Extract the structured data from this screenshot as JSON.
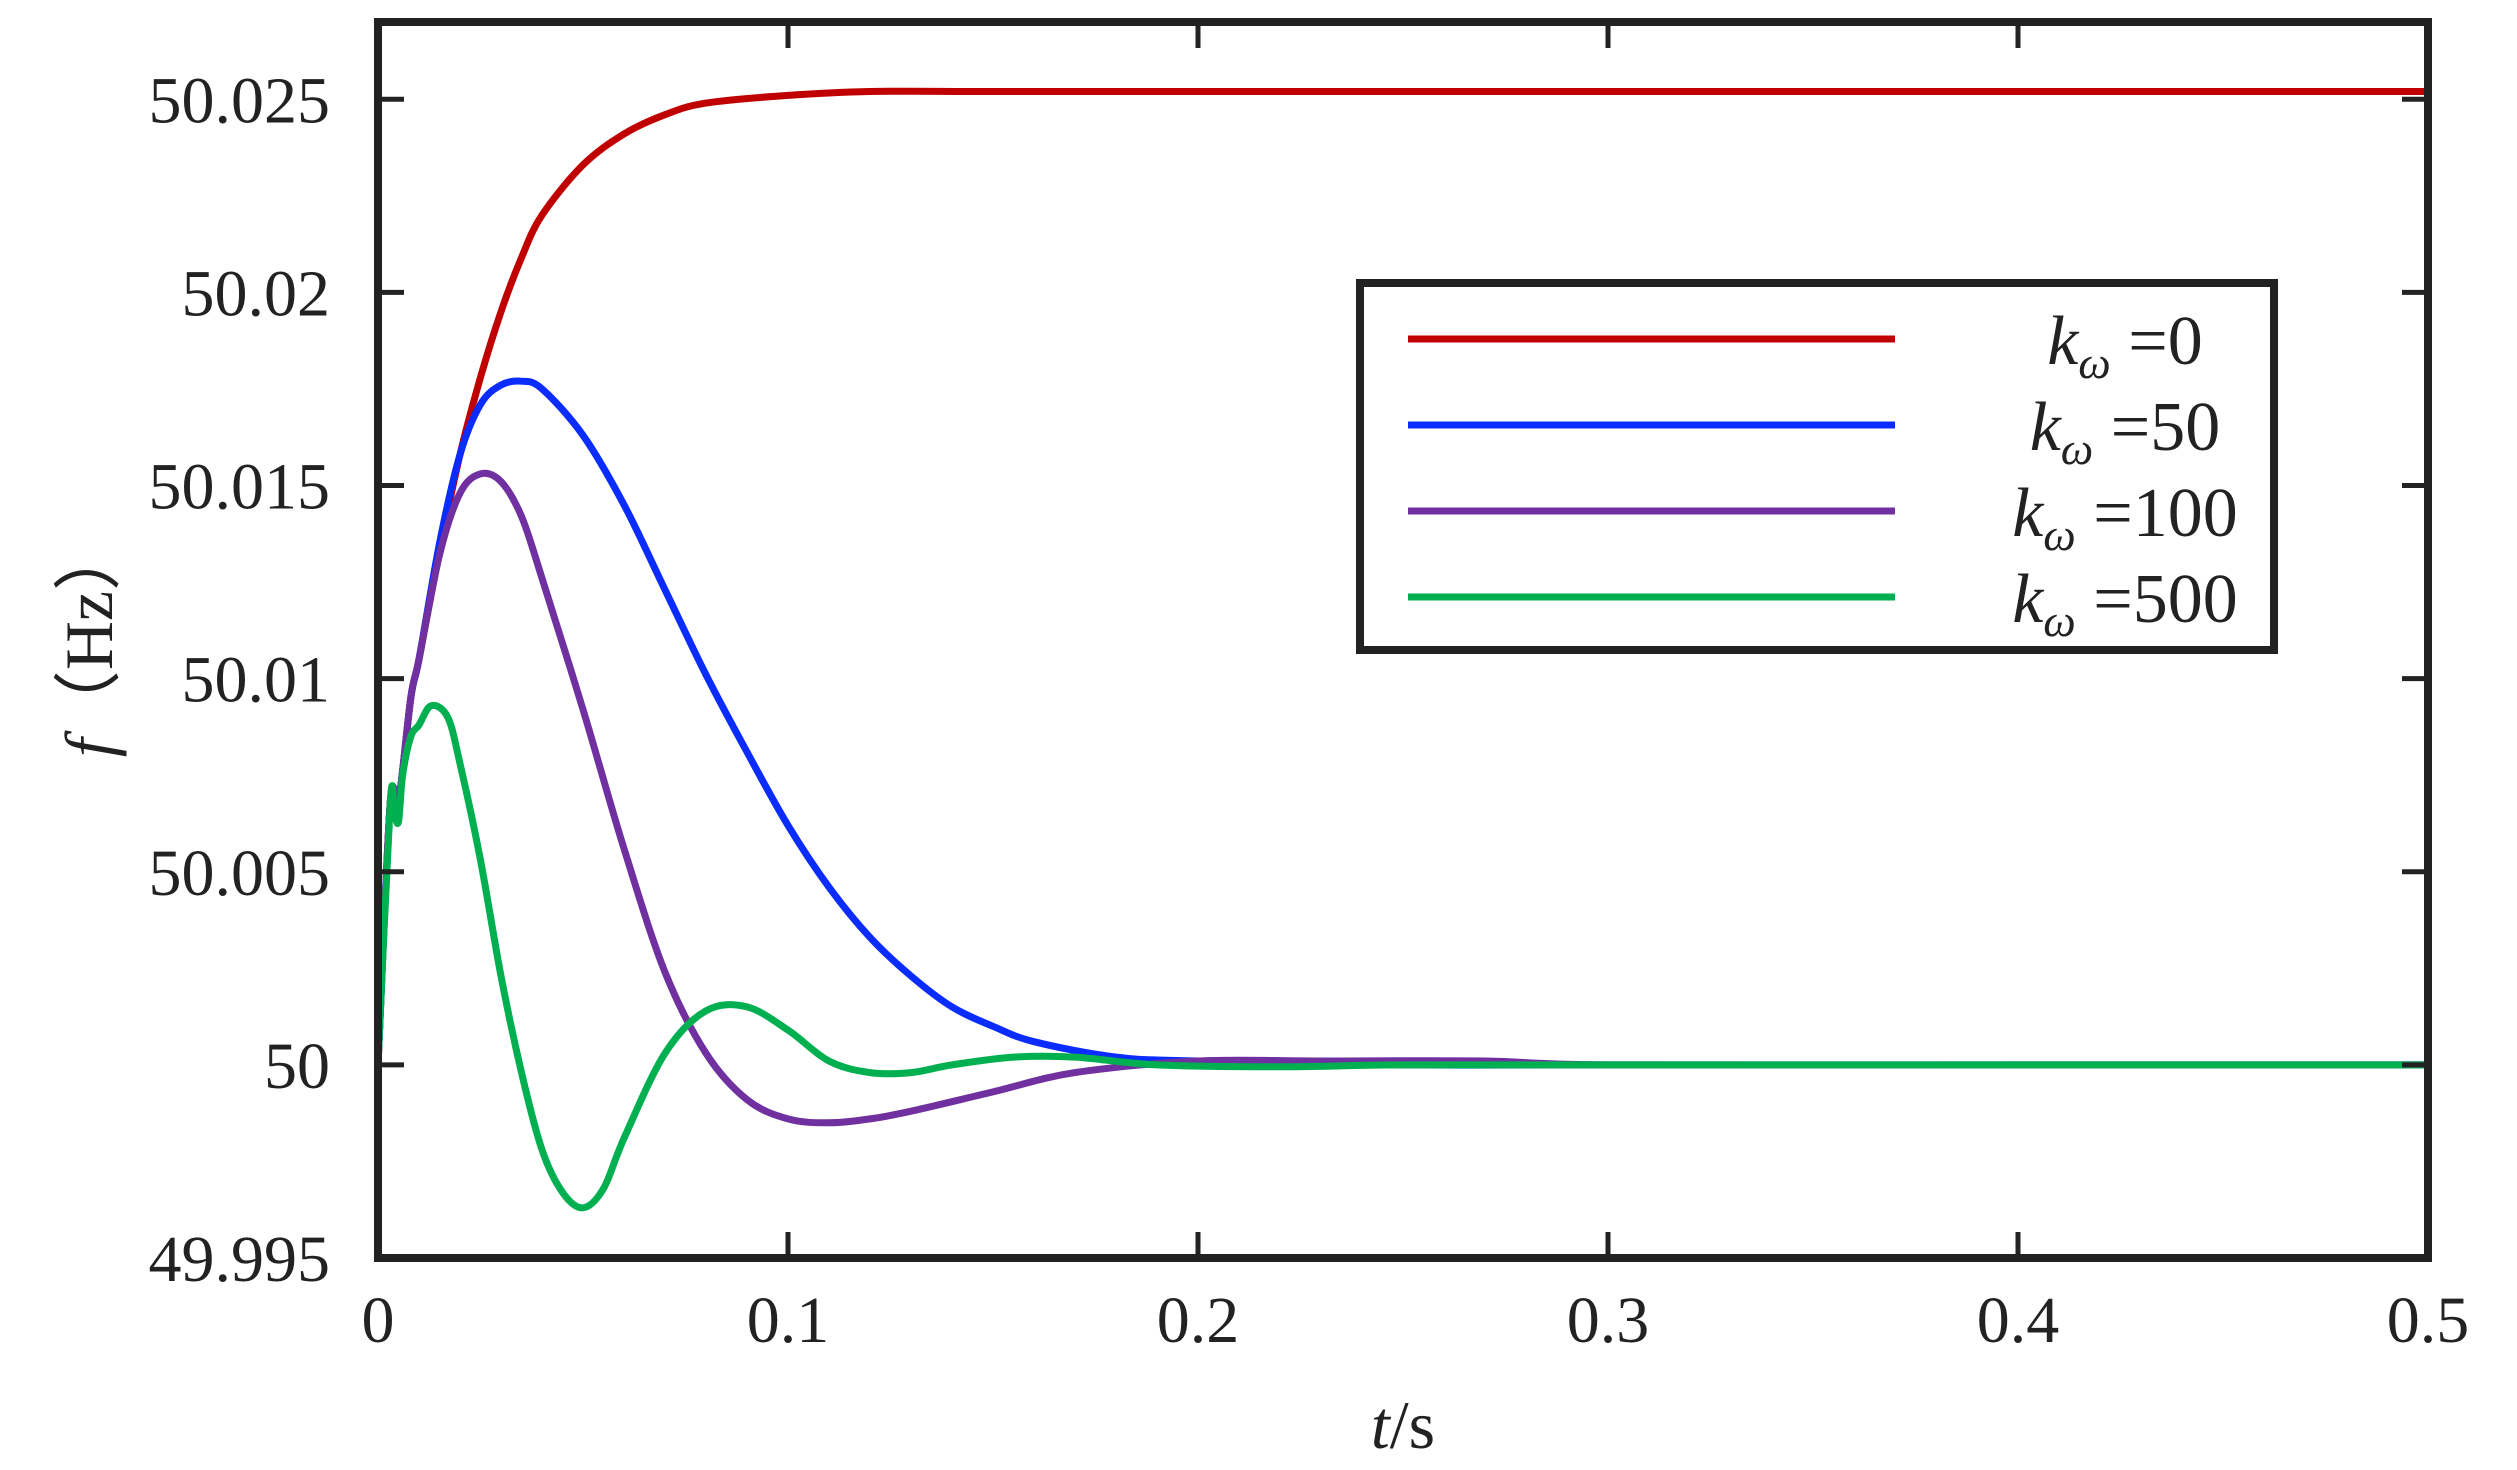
{
  "chart_data": {
    "type": "line",
    "xlabel": {
      "var": "t",
      "unit": "/s"
    },
    "ylabel": {
      "var": "f",
      "unit": "（Hz）"
    },
    "xlim": [
      0,
      0.5
    ],
    "ylim": [
      49.995,
      50.027
    ],
    "x_ticks": [
      0,
      0.1,
      0.2,
      0.3,
      0.4,
      0.5
    ],
    "x_tick_labels": [
      "0",
      "0.1",
      "0.2",
      "0.3",
      "0.4",
      "0.5"
    ],
    "y_ticks": [
      49.995,
      50,
      50.005,
      50.01,
      50.015,
      50.02,
      50.025
    ],
    "y_tick_labels": [
      "49.995",
      "50",
      "50.005",
      "50.01",
      "50.015",
      "50.02",
      "50.025"
    ],
    "grid": false,
    "legend_position": "top-right",
    "series": [
      {
        "label": {
          "var": "k",
          "sub": "ω",
          "rest": " =0"
        },
        "color": "#c00000",
        "points": [
          [
            0,
            50
          ],
          [
            0.003,
            50.0068
          ],
          [
            0.005,
            50.0068
          ],
          [
            0.008,
            50.0095
          ],
          [
            0.01,
            50.0105
          ],
          [
            0.015,
            50.0133
          ],
          [
            0.02,
            50.0158
          ],
          [
            0.025,
            50.0178
          ],
          [
            0.03,
            50.0195
          ],
          [
            0.035,
            50.0209
          ],
          [
            0.04,
            50.022
          ],
          [
            0.05,
            50.0233
          ],
          [
            0.06,
            50.0241
          ],
          [
            0.07,
            50.0246
          ],
          [
            0.08,
            50.0249
          ],
          [
            0.1,
            50.0251
          ],
          [
            0.12,
            50.0252
          ],
          [
            0.15,
            50.0252
          ],
          [
            0.2,
            50.0252
          ],
          [
            0.3,
            50.0252
          ],
          [
            0.4,
            50.0252
          ],
          [
            0.5,
            50.0252
          ]
        ]
      },
      {
        "label": {
          "var": "k",
          "sub": "ω",
          "rest": " =50"
        },
        "color": "#0a2cff",
        "points": [
          [
            0,
            50
          ],
          [
            0.003,
            50.0068
          ],
          [
            0.005,
            50.0068
          ],
          [
            0.008,
            50.0095
          ],
          [
            0.01,
            50.0105
          ],
          [
            0.015,
            50.0135
          ],
          [
            0.02,
            50.0158
          ],
          [
            0.025,
            50.0171
          ],
          [
            0.03,
            50.0176
          ],
          [
            0.035,
            50.0177
          ],
          [
            0.04,
            50.0175
          ],
          [
            0.05,
            50.0163
          ],
          [
            0.06,
            50.0145
          ],
          [
            0.07,
            50.0123
          ],
          [
            0.08,
            50.0101
          ],
          [
            0.09,
            50.0081
          ],
          [
            0.1,
            50.0062
          ],
          [
            0.11,
            50.0046
          ],
          [
            0.12,
            50.0033
          ],
          [
            0.13,
            50.0023
          ],
          [
            0.14,
            50.0015
          ],
          [
            0.15,
            50.001
          ],
          [
            0.16,
            50.0006
          ],
          [
            0.18,
            50.0002
          ],
          [
            0.2,
            50.0001
          ],
          [
            0.25,
            50
          ],
          [
            0.3,
            50
          ],
          [
            0.4,
            50
          ],
          [
            0.5,
            50
          ]
        ]
      },
      {
        "label": {
          "var": "k",
          "sub": "ω",
          "rest": " =100"
        },
        "color": "#7030a0",
        "points": [
          [
            0,
            50
          ],
          [
            0.003,
            50.0068
          ],
          [
            0.005,
            50.0068
          ],
          [
            0.008,
            50.0095
          ],
          [
            0.01,
            50.0105
          ],
          [
            0.015,
            50.0132
          ],
          [
            0.02,
            50.0148
          ],
          [
            0.025,
            50.0153
          ],
          [
            0.03,
            50.0151
          ],
          [
            0.035,
            50.0142
          ],
          [
            0.04,
            50.0126
          ],
          [
            0.05,
            50.0092
          ],
          [
            0.06,
            50.0056
          ],
          [
            0.07,
            50.0024
          ],
          [
            0.08,
            50.0003
          ],
          [
            0.09,
            49.9991
          ],
          [
            0.1,
            49.9986
          ],
          [
            0.11,
            49.9985
          ],
          [
            0.12,
            49.9986
          ],
          [
            0.13,
            49.9988
          ],
          [
            0.15,
            49.9993
          ],
          [
            0.17,
            49.9998
          ],
          [
            0.2,
            50.0001
          ],
          [
            0.23,
            50.0001
          ],
          [
            0.27,
            50.0001
          ],
          [
            0.3,
            50
          ],
          [
            0.4,
            50
          ],
          [
            0.5,
            50
          ]
        ]
      },
      {
        "label": {
          "var": "k",
          "sub": "ω",
          "rest": " =500"
        },
        "color": "#00b050",
        "points": [
          [
            0,
            50
          ],
          [
            0.003,
            50.0068
          ],
          [
            0.004,
            50.0065
          ],
          [
            0.005,
            50.0063
          ],
          [
            0.006,
            50.0075
          ],
          [
            0.008,
            50.0085
          ],
          [
            0.01,
            50.0088
          ],
          [
            0.013,
            50.0093
          ],
          [
            0.017,
            50.009
          ],
          [
            0.02,
            50.0078
          ],
          [
            0.025,
            50.0053
          ],
          [
            0.03,
            50.0023
          ],
          [
            0.035,
            49.9998
          ],
          [
            0.04,
            49.9978
          ],
          [
            0.045,
            49.9967
          ],
          [
            0.05,
            49.9963
          ],
          [
            0.055,
            49.9968
          ],
          [
            0.06,
            49.9981
          ],
          [
            0.07,
            50.0003
          ],
          [
            0.08,
            50.0014
          ],
          [
            0.09,
            50.0015
          ],
          [
            0.1,
            50.0009
          ],
          [
            0.11,
            50.0001
          ],
          [
            0.12,
            49.9998
          ],
          [
            0.13,
            49.9998
          ],
          [
            0.14,
            50
          ],
          [
            0.155,
            50.0002
          ],
          [
            0.17,
            50.0002
          ],
          [
            0.19,
            50
          ],
          [
            0.22,
            49.99995
          ],
          [
            0.25,
            50
          ],
          [
            0.3,
            50
          ],
          [
            0.4,
            50
          ],
          [
            0.5,
            50
          ]
        ]
      }
    ]
  }
}
